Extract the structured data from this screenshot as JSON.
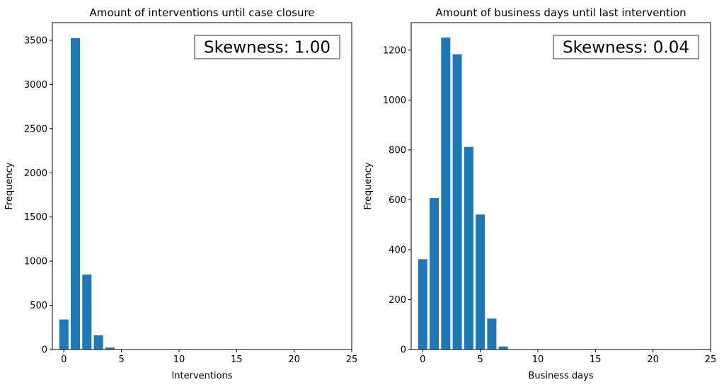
{
  "chart_data": [
    {
      "type": "bar",
      "title": "Amount of interventions until case closure",
      "xlabel": "Interventions",
      "ylabel": "Frequency",
      "annotation": "Skewness: 1.00",
      "x": [
        0,
        1,
        2,
        3,
        4
      ],
      "values": [
        340,
        3525,
        848,
        160,
        22
      ],
      "xlim": [
        -1,
        25
      ],
      "ylim": [
        0,
        3700
      ],
      "xticks": [
        0,
        5,
        10,
        15,
        20,
        25
      ],
      "yticks": [
        0,
        500,
        1000,
        1500,
        2000,
        2500,
        3000,
        3500
      ],
      "bar_color": "#1f77b4",
      "grid": false
    },
    {
      "type": "bar",
      "title": "Amount of business days until last intervention",
      "xlabel": "Business days",
      "ylabel": "Frequency",
      "annotation": "Skewness: 0.04",
      "x": [
        0,
        1,
        2,
        3,
        4,
        5,
        6,
        7
      ],
      "values": [
        362,
        607,
        1250,
        1183,
        812,
        541,
        124,
        12
      ],
      "xlim": [
        -1,
        25
      ],
      "ylim": [
        0,
        1310
      ],
      "xticks": [
        0,
        5,
        10,
        15,
        20,
        25
      ],
      "yticks": [
        0,
        200,
        400,
        600,
        800,
        1000,
        1200
      ],
      "bar_color": "#1f77b4",
      "grid": false
    }
  ]
}
